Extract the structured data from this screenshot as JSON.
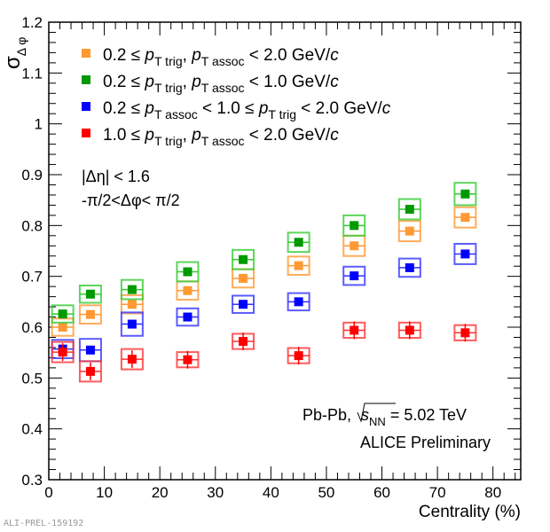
{
  "chart_data": {
    "type": "scatter",
    "xlabel": "Centrality (%)",
    "ylabel": {
      "main": "σ",
      "sub": "Δ φ"
    },
    "xlim": [
      0,
      85
    ],
    "ylim": [
      0.3,
      1.2
    ],
    "x_ticks": [
      0,
      10,
      20,
      30,
      40,
      50,
      60,
      70,
      80
    ],
    "y_ticks": [
      "0.3",
      "0.4",
      "0.5",
      "0.6",
      "0.7",
      "0.8",
      "0.9",
      "1",
      "1.1",
      "1.2"
    ],
    "grid": false,
    "legend_position": "top-left",
    "x": [
      2.5,
      7.5,
      15,
      25,
      35,
      45,
      55,
      65,
      75
    ],
    "series": [
      {
        "name": "0.2 ≤ pT trig, pT assoc < 2.0 GeV/c",
        "label": [
          {
            "t": "0.2 ≤ "
          },
          {
            "t": "p",
            "i": true
          },
          {
            "t": "T trig",
            "sub": true
          },
          {
            "t": ", "
          },
          {
            "t": "p",
            "i": true
          },
          {
            "t": "T assoc",
            "sub": true
          },
          {
            "t": " < 2.0 GeV/"
          },
          {
            "t": "c",
            "i": true
          }
        ],
        "color": "#ff9933",
        "box_color": "#ff9933",
        "values": [
          0.6,
          0.625,
          0.645,
          0.672,
          0.696,
          0.721,
          0.76,
          0.789,
          0.816
        ],
        "syst": [
          0.017,
          0.018,
          0.018,
          0.018,
          0.018,
          0.018,
          0.02,
          0.02,
          0.02
        ]
      },
      {
        "name": "0.2 ≤ pT trig, pT assoc < 1.0 GeV/c",
        "label": [
          {
            "t": "0.2 ≤ "
          },
          {
            "t": "p",
            "i": true
          },
          {
            "t": "T trig",
            "sub": true
          },
          {
            "t": ", "
          },
          {
            "t": "p",
            "i": true
          },
          {
            "t": "T assoc",
            "sub": true
          },
          {
            "t": " < 1.0 GeV/"
          },
          {
            "t": "c",
            "i": true
          }
        ],
        "color": "#009900",
        "box_color": "#33cc33",
        "values": [
          0.626,
          0.665,
          0.674,
          0.709,
          0.733,
          0.767,
          0.8,
          0.832,
          0.862
        ],
        "syst": [
          0.017,
          0.017,
          0.019,
          0.019,
          0.019,
          0.019,
          0.02,
          0.02,
          0.022
        ]
      },
      {
        "name": "0.2 ≤ pT assoc < 1.0 ≤ pT trig < 2.0 GeV/c",
        "label": [
          {
            "t": "0.2 ≤ "
          },
          {
            "t": "p",
            "i": true
          },
          {
            "t": "T assoc",
            "sub": true
          },
          {
            "t": " < 1.0 ≤ "
          },
          {
            "t": "p",
            "i": true
          },
          {
            "t": "T trig",
            "sub": true
          },
          {
            "t": " < 2.0 GeV/"
          },
          {
            "t": "c",
            "i": true
          }
        ],
        "color": "#0000ff",
        "box_color": "#3333ff",
        "values": [
          0.557,
          0.555,
          0.606,
          0.62,
          0.645,
          0.65,
          0.701,
          0.717,
          0.744
        ],
        "syst": [
          0.018,
          0.022,
          0.023,
          0.017,
          0.017,
          0.017,
          0.018,
          0.018,
          0.02
        ]
      },
      {
        "name": "1.0 ≤ pT trig, pT assoc < 2.0 GeV/c",
        "label": [
          {
            "t": "1.0 ≤ "
          },
          {
            "t": "p",
            "i": true
          },
          {
            "t": "T trig",
            "sub": true
          },
          {
            "t": ", "
          },
          {
            "t": "p",
            "i": true
          },
          {
            "t": "T assoc",
            "sub": true
          },
          {
            "t": " < 2.0 GeV/"
          },
          {
            "t": "c",
            "i": true
          }
        ],
        "color": "#ff0000",
        "box_color": "#ff3333",
        "values": [
          0.551,
          0.513,
          0.537,
          0.536,
          0.572,
          0.544,
          0.594,
          0.594,
          0.589
        ],
        "syst": [
          0.02,
          0.02,
          0.02,
          0.015,
          0.015,
          0.015,
          0.015,
          0.015,
          0.015
        ]
      }
    ],
    "annotations": {
      "eta_cut": "|Δη| < 1.6",
      "phi_range": "-π/2<Δφ< π/2",
      "system": "Pb-Pb, ",
      "sqrt": "s",
      "sqrt_sub": "NN",
      "energy": " = 5.02 TeV",
      "preliminary": "ALICE Preliminary"
    }
  },
  "watermark": "ALI-PREL-159192"
}
